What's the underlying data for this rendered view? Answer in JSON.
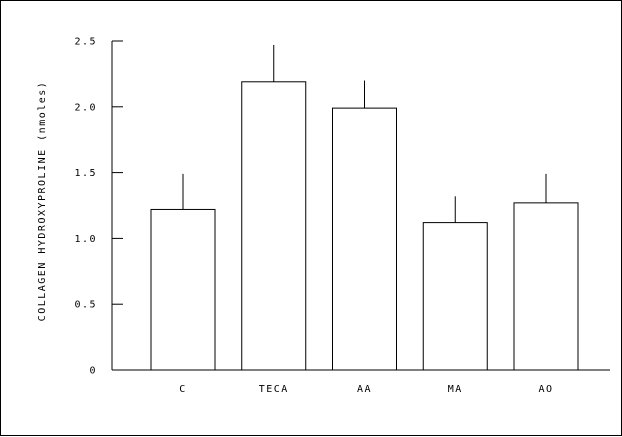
{
  "chart_data": {
    "type": "bar",
    "ylabel": "COLLAGEN HYDROXYPROLINE (nmoles)",
    "categories": [
      "C",
      "TECA",
      "AA",
      "MA",
      "AO"
    ],
    "values": [
      1.22,
      2.19,
      1.99,
      1.12,
      1.27
    ],
    "error_upper": [
      0.27,
      0.28,
      0.21,
      0.2,
      0.22
    ],
    "yticks": [
      "0",
      "0.5",
      "1.0",
      "1.5",
      "2.0",
      "2.5"
    ],
    "ylim": [
      0,
      2.5
    ],
    "grid": false,
    "legend": "none",
    "colors": {
      "bar_fill": "#ffffff",
      "bar_stroke": "#000000",
      "axis": "#000000"
    }
  }
}
